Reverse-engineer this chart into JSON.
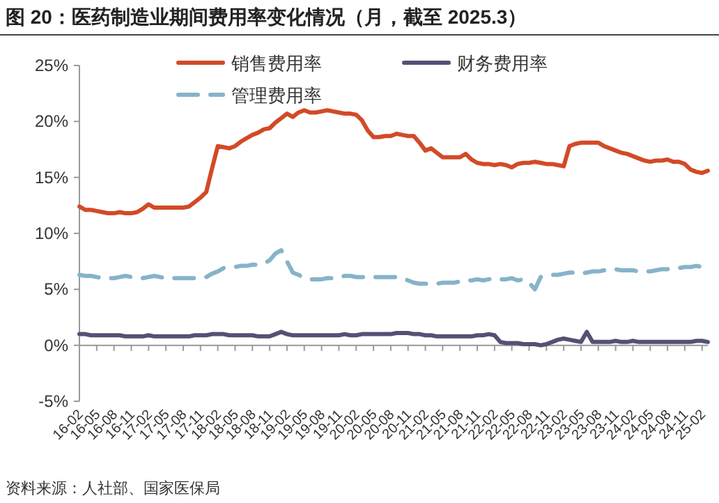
{
  "chart_data": {
    "type": "line",
    "title": "图 20：医药制造业期间费用率变化情况（月，截至 2025.3）",
    "categories": [
      "16-02",
      null,
      null,
      "16-05",
      null,
      null,
      "16-08",
      null,
      null,
      "16-11",
      null,
      null,
      "17-02",
      null,
      null,
      "17-05",
      null,
      null,
      "17-08",
      null,
      null,
      "17-11",
      null,
      null,
      "18-02",
      null,
      null,
      "18-05",
      null,
      null,
      "18-08",
      null,
      null,
      "18-11",
      null,
      null,
      "19-02",
      null,
      null,
      "19-05",
      null,
      null,
      "19-08",
      null,
      null,
      "19-11",
      null,
      null,
      "20-02",
      null,
      null,
      "20-05",
      null,
      null,
      "20-08",
      null,
      null,
      "20-11",
      null,
      null,
      "21-02",
      null,
      null,
      "21-05",
      null,
      null,
      "21-08",
      null,
      null,
      "21-11",
      null,
      null,
      "22-02",
      null,
      null,
      "22-05",
      null,
      null,
      "22-08",
      null,
      null,
      "22-11",
      null,
      null,
      "23-02",
      null,
      null,
      "23-05",
      null,
      null,
      "23-08",
      null,
      null,
      "23-11",
      null,
      null,
      "24-02",
      null,
      null,
      "24-05",
      null,
      null,
      "24-08",
      null,
      null,
      "24-11",
      null,
      null,
      "25-02",
      null
    ],
    "series": [
      {
        "name": "销售费用率",
        "color": "#d24a27",
        "line_style": "solid",
        "values": [
          12.4,
          12.1,
          12.1,
          12.0,
          11.9,
          11.8,
          11.8,
          11.9,
          11.8,
          11.8,
          11.9,
          12.2,
          12.6,
          12.3,
          12.3,
          12.3,
          12.3,
          12.3,
          12.3,
          12.4,
          12.8,
          13.2,
          13.7,
          15.8,
          17.8,
          17.7,
          17.6,
          17.8,
          18.2,
          18.5,
          18.8,
          19.0,
          19.3,
          19.4,
          19.9,
          20.3,
          20.7,
          20.4,
          20.8,
          21.0,
          20.8,
          20.8,
          20.9,
          21.0,
          20.9,
          20.8,
          20.7,
          20.7,
          20.6,
          20.1,
          19.2,
          18.6,
          18.6,
          18.7,
          18.7,
          18.9,
          18.8,
          18.7,
          18.7,
          18.1,
          17.4,
          17.6,
          17.2,
          16.8,
          16.8,
          16.8,
          16.8,
          17.1,
          16.6,
          16.3,
          16.2,
          16.2,
          16.1,
          16.2,
          16.1,
          15.9,
          16.2,
          16.3,
          16.3,
          16.4,
          16.3,
          16.2,
          16.2,
          16.1,
          16.0,
          17.8,
          18.0,
          18.1,
          18.1,
          18.1,
          18.1,
          17.8,
          17.6,
          17.4,
          17.2,
          17.1,
          16.9,
          16.7,
          16.5,
          16.4,
          16.5,
          16.5,
          16.6,
          16.4,
          16.4,
          16.2,
          15.7,
          15.5,
          15.4,
          15.6
        ]
      },
      {
        "name": "财务费用率",
        "color": "#565074",
        "line_style": "solid",
        "values": [
          1.0,
          1.0,
          0.9,
          0.9,
          0.9,
          0.9,
          0.9,
          0.9,
          0.8,
          0.8,
          0.8,
          0.8,
          0.9,
          0.8,
          0.8,
          0.8,
          0.8,
          0.8,
          0.8,
          0.8,
          0.9,
          0.9,
          0.9,
          1.0,
          1.0,
          1.0,
          0.9,
          0.9,
          0.9,
          0.9,
          0.9,
          0.8,
          0.8,
          0.8,
          1.0,
          1.2,
          1.0,
          0.9,
          0.9,
          0.9,
          0.9,
          0.9,
          0.9,
          0.9,
          0.9,
          0.9,
          1.0,
          0.9,
          0.9,
          1.0,
          1.0,
          1.0,
          1.0,
          1.0,
          1.0,
          1.1,
          1.1,
          1.1,
          1.0,
          1.0,
          0.9,
          0.9,
          0.8,
          0.8,
          0.8,
          0.8,
          0.8,
          0.8,
          0.8,
          0.9,
          0.9,
          1.0,
          0.9,
          0.3,
          0.2,
          0.2,
          0.2,
          0.1,
          0.1,
          0.1,
          0.0,
          0.1,
          0.3,
          0.5,
          0.6,
          0.5,
          0.4,
          0.3,
          1.2,
          0.3,
          0.3,
          0.3,
          0.3,
          0.4,
          0.3,
          0.3,
          0.4,
          0.3,
          0.3,
          0.3,
          0.3,
          0.3,
          0.3,
          0.3,
          0.3,
          0.3,
          0.3,
          0.4,
          0.4,
          0.3
        ]
      },
      {
        "name": "管理费用率",
        "color": "#86b3c9",
        "line_style": "dashed",
        "values": [
          6.3,
          6.2,
          6.2,
          6.1,
          6.0,
          6.0,
          6.0,
          6.1,
          6.2,
          6.1,
          6.0,
          6.0,
          6.1,
          6.2,
          6.1,
          6.0,
          6.0,
          6.0,
          6.0,
          6.0,
          6.0,
          6.0,
          6.1,
          6.4,
          6.6,
          6.9,
          7.0,
          7.0,
          7.1,
          7.1,
          7.2,
          7.2,
          7.3,
          7.6,
          8.2,
          8.5,
          7.5,
          6.5,
          6.3,
          6.0,
          5.9,
          5.9,
          5.9,
          6.0,
          6.0,
          6.1,
          6.2,
          6.2,
          6.1,
          6.1,
          6.1,
          6.1,
          6.1,
          6.1,
          6.1,
          6.1,
          6.0,
          5.8,
          5.6,
          5.5,
          5.5,
          5.5,
          5.5,
          5.6,
          5.6,
          5.6,
          5.7,
          5.8,
          5.8,
          5.9,
          5.8,
          5.9,
          6.0,
          5.9,
          5.9,
          6.0,
          5.8,
          5.9,
          5.6,
          5.0,
          6.1,
          6.2,
          6.3,
          6.3,
          6.4,
          6.5,
          6.5,
          6.4,
          6.5,
          6.6,
          6.6,
          6.7,
          6.7,
          6.8,
          6.7,
          6.7,
          6.7,
          6.6,
          6.6,
          6.6,
          6.7,
          6.8,
          6.8,
          6.9,
          6.9,
          7.0,
          7.0,
          7.1,
          7.0,
          6.8
        ]
      }
    ],
    "ylim": [
      -5,
      25
    ],
    "yticks": [
      {
        "value": -5,
        "label": "-5%"
      },
      {
        "value": 0,
        "label": "0%"
      },
      {
        "value": 5,
        "label": "5%"
      },
      {
        "value": 10,
        "label": "10%"
      },
      {
        "value": 15,
        "label": "15%"
      },
      {
        "value": 20,
        "label": "20%"
      },
      {
        "value": 25,
        "label": "25%"
      }
    ],
    "legend": "top",
    "annotations": [
      "资料来源：人社部、国家医保局"
    ]
  }
}
